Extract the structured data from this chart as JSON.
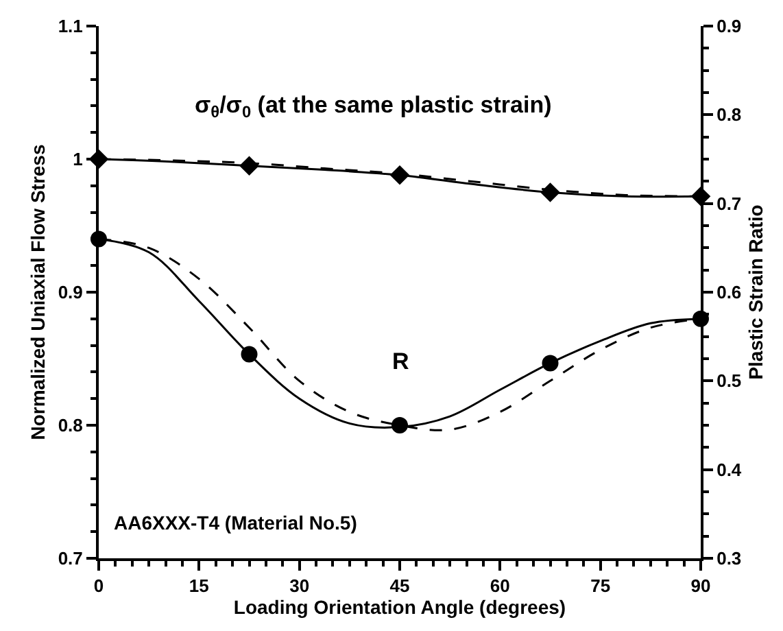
{
  "chart_data": {
    "type": "line",
    "xlabel": "Loading Orientation Angle (degrees)",
    "ylabel": "Normalized Uniaxial Flow Stress",
    "y2label": "Plastic Strain Ratio",
    "xlim": [
      0,
      90
    ],
    "xticks": [
      0,
      15,
      30,
      45,
      60,
      75,
      90
    ],
    "ylim": [
      0.7,
      1.1
    ],
    "yticks": [
      0.7,
      0.8,
      0.9,
      1,
      1.1
    ],
    "y2lim": [
      0.3,
      0.9
    ],
    "y2ticks": [
      0.3,
      0.4,
      0.5,
      0.6,
      0.7,
      0.8,
      0.9
    ],
    "series": [
      {
        "axis": "y",
        "line_style": "solid",
        "marker": "none",
        "color": "#000000",
        "x": [
          0,
          11.25,
          22.5,
          33.75,
          45,
          56.25,
          67.5,
          78.75,
          90
        ],
        "values": [
          1.0,
          0.998,
          0.995,
          0.992,
          0.988,
          0.981,
          0.975,
          0.972,
          0.972
        ]
      },
      {
        "axis": "y",
        "line_style": "dashed",
        "marker": "none",
        "color": "#000000",
        "x": [
          0,
          11.25,
          22.5,
          33.75,
          45,
          56.25,
          67.5,
          78.75,
          90
        ],
        "values": [
          1.0,
          0.999,
          0.997,
          0.993,
          0.989,
          0.983,
          0.977,
          0.973,
          0.972
        ]
      },
      {
        "type": "scatter",
        "axis": "y",
        "marker": "diamond",
        "color": "#000000",
        "x": [
          0,
          22.5,
          45,
          67.5,
          90
        ],
        "values": [
          1.0,
          0.995,
          0.988,
          0.975,
          0.972
        ]
      },
      {
        "axis": "y2",
        "line_style": "solid",
        "marker": "none",
        "color": "#000000",
        "x": [
          0,
          7.5,
          15,
          22.5,
          30,
          37.5,
          45,
          52.5,
          60,
          67.5,
          75,
          82.5,
          90
        ],
        "values": [
          0.66,
          0.645,
          0.59,
          0.53,
          0.48,
          0.452,
          0.448,
          0.46,
          0.49,
          0.52,
          0.545,
          0.565,
          0.57
        ]
      },
      {
        "axis": "y2",
        "line_style": "dashed",
        "marker": "none",
        "color": "#000000",
        "x": [
          0,
          7.5,
          15,
          22.5,
          30,
          37.5,
          45,
          52.5,
          60,
          67.5,
          75,
          82.5,
          90
        ],
        "values": [
          0.66,
          0.65,
          0.615,
          0.56,
          0.5,
          0.465,
          0.45,
          0.445,
          0.465,
          0.5,
          0.535,
          0.56,
          0.57
        ]
      },
      {
        "type": "scatter",
        "axis": "y2",
        "marker": "circle",
        "color": "#000000",
        "x": [
          0,
          22.5,
          45,
          67.5,
          90
        ],
        "values": [
          0.66,
          0.53,
          0.45,
          0.52,
          0.57
        ]
      }
    ],
    "annotations": [
      "σ$_{θ}$/σ$_{0}$ (at the same plastic strain)",
      "R",
      "AA6XXX-T4 (Material No.5)"
    ]
  }
}
